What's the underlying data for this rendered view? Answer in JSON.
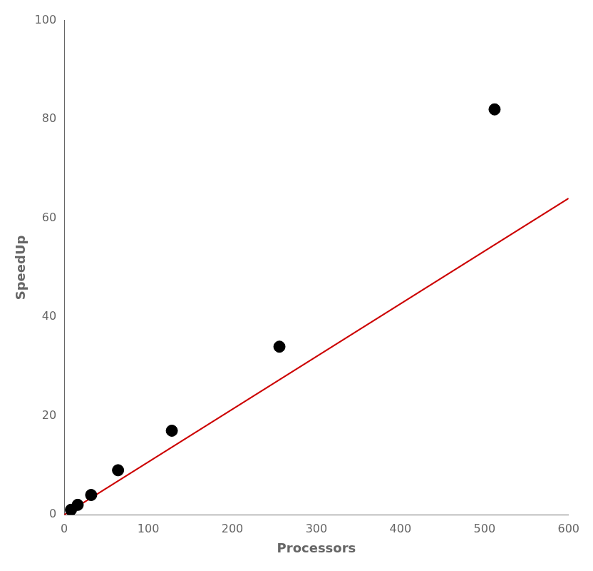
{
  "chart_data": {
    "type": "scatter",
    "xlabel": "Processors",
    "ylabel": "SpeedUp",
    "xlim": [
      0,
      600
    ],
    "ylim": [
      0,
      100
    ],
    "xticks": [
      0,
      100,
      200,
      300,
      400,
      500,
      600
    ],
    "yticks": [
      0,
      20,
      40,
      60,
      80,
      100
    ],
    "grid": false,
    "series": [
      {
        "type": "line",
        "color": "#cc0000",
        "x": [
          0,
          600
        ],
        "values": [
          0.0,
          64.0
        ]
      },
      {
        "type": "scatter",
        "color": "#000000",
        "marker": "circle",
        "x": [
          8,
          16,
          32,
          64,
          128,
          256,
          512
        ],
        "values": [
          1,
          2,
          4,
          9,
          17,
          34,
          82
        ]
      }
    ]
  }
}
